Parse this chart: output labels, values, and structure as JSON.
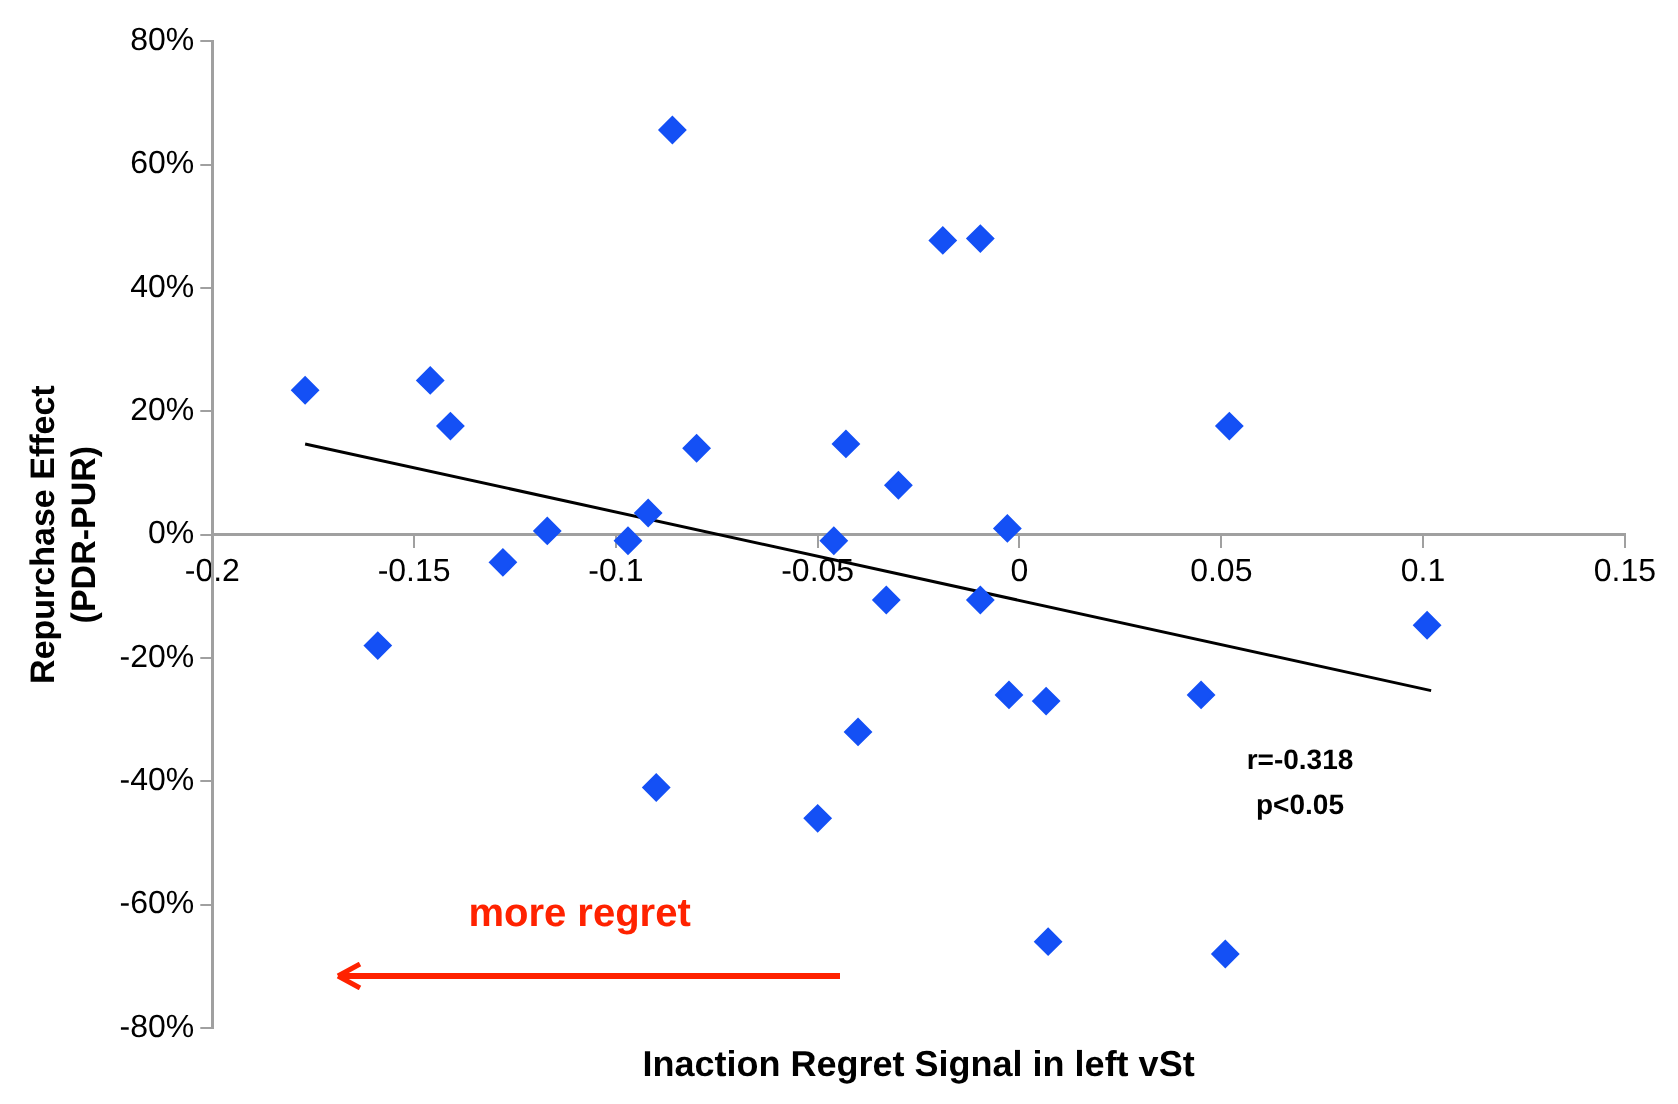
{
  "chart_data": {
    "type": "scatter",
    "xlabel": "Inaction Regret Signal in left vSt",
    "ylabel": "Repurchase Effect\n(PDR-PUR)",
    "xlim": [
      -0.2,
      0.15
    ],
    "xticks": [
      -0.2,
      -0.15,
      -0.1,
      -0.05,
      0,
      0.05,
      0.1,
      0.15
    ],
    "ylim": [
      -80,
      80
    ],
    "yticks": [
      {
        "value": -80,
        "label": "-80%"
      },
      {
        "value": -60,
        "label": "-60%"
      },
      {
        "value": -40,
        "label": "-40%"
      },
      {
        "value": -20,
        "label": "-20%"
      },
      {
        "value": 0,
        "label": "0%"
      },
      {
        "value": 20,
        "label": "20%"
      },
      {
        "value": 40,
        "label": "40%"
      },
      {
        "value": 60,
        "label": "60%"
      },
      {
        "value": 80,
        "label": "80%"
      }
    ],
    "grid": false,
    "legend": false,
    "series": [
      {
        "color": "#1450f5",
        "marker": "diamond",
        "x": [
          -0.177,
          -0.146,
          -0.141,
          -0.117,
          -0.128,
          -0.097,
          -0.092,
          -0.159,
          -0.09,
          -0.086,
          -0.08,
          -0.019,
          -0.0097,
          -0.043,
          -0.03,
          -0.046,
          -0.003,
          -0.033,
          -0.0097,
          -0.0026,
          0.0066,
          -0.04,
          -0.05,
          0.0071,
          0.052,
          0.045,
          0.101,
          0.051
        ],
        "values": [
          23.4,
          25,
          17.6,
          0.6,
          -4.5,
          -1,
          3.5,
          -18,
          -41,
          65.6,
          14,
          47.7,
          48,
          14.7,
          8,
          -1,
          1,
          -10.6,
          -10.6,
          -26,
          -27,
          -32,
          -46,
          -66,
          17.6,
          -26,
          -14.7,
          -68
        ]
      },
      {
        "type": "line",
        "color": "#000000",
        "marker": "none",
        "x": [
          -0.177,
          0.102
        ],
        "values": [
          14.7,
          -25.3
        ]
      }
    ],
    "annotations": [
      "r=-0.318",
      "p<0.05",
      "more regret"
    ]
  }
}
